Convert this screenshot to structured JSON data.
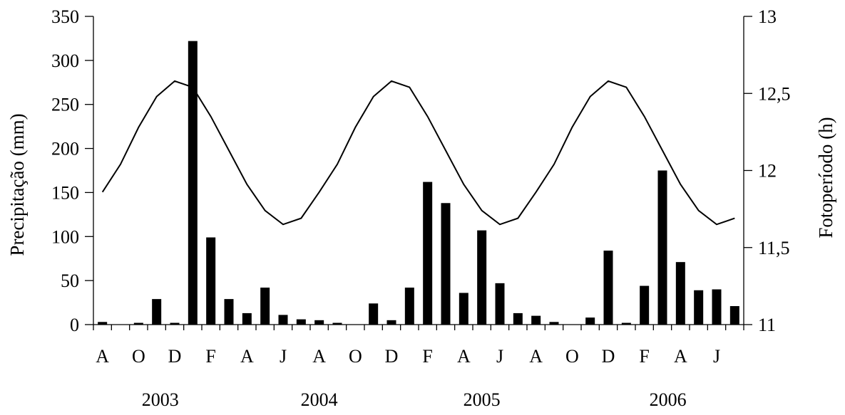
{
  "chart_data": {
    "type": "bar",
    "ylabel": "Precipitação (mm)",
    "y2label": "Fotoperíodo (h)",
    "ylim": [
      0,
      350
    ],
    "y2lim": [
      11,
      13
    ],
    "y_ticks": [
      0,
      50,
      100,
      150,
      200,
      250,
      300,
      350
    ],
    "y2_ticks": [
      "11",
      "11,5",
      "12",
      "12,5",
      "13"
    ],
    "month_labels": [
      "A",
      "O",
      "D",
      "F",
      "A",
      "J",
      "A",
      "O",
      "D",
      "F",
      "A",
      "J",
      "A",
      "O",
      "D",
      "F",
      "A",
      "J"
    ],
    "month_label_positions": [
      0,
      2,
      4,
      6,
      8,
      10,
      12,
      14,
      16,
      18,
      20,
      22,
      24,
      26,
      28,
      30,
      32,
      34
    ],
    "year_labels": [
      "2003",
      "2004",
      "2005",
      "2006"
    ],
    "year_label_positions": [
      3.2,
      12.0,
      21.0,
      31.3
    ],
    "grid": false,
    "legend": "none",
    "series": [
      {
        "type": "bar",
        "axis": "left",
        "values": [
          3,
          0,
          2,
          29,
          2,
          322,
          99,
          29,
          13,
          42,
          11,
          6,
          5,
          2,
          0,
          24,
          5,
          42,
          162,
          138,
          36,
          107,
          47,
          13,
          10,
          3,
          0,
          8,
          84,
          2,
          44,
          175,
          71,
          39,
          40,
          21
        ]
      },
      {
        "type": "line",
        "axis": "right",
        "values": [
          11.86,
          12.04,
          12.28,
          12.48,
          12.58,
          12.54,
          12.35,
          12.13,
          11.91,
          11.74,
          11.65,
          11.69,
          11.86,
          12.04,
          12.28,
          12.48,
          12.58,
          12.54,
          12.35,
          12.13,
          11.91,
          11.74,
          11.65,
          11.69,
          11.86,
          12.04,
          12.28,
          12.48,
          12.58,
          12.54,
          12.35,
          12.13,
          11.91,
          11.74,
          11.65,
          11.69
        ]
      }
    ]
  }
}
